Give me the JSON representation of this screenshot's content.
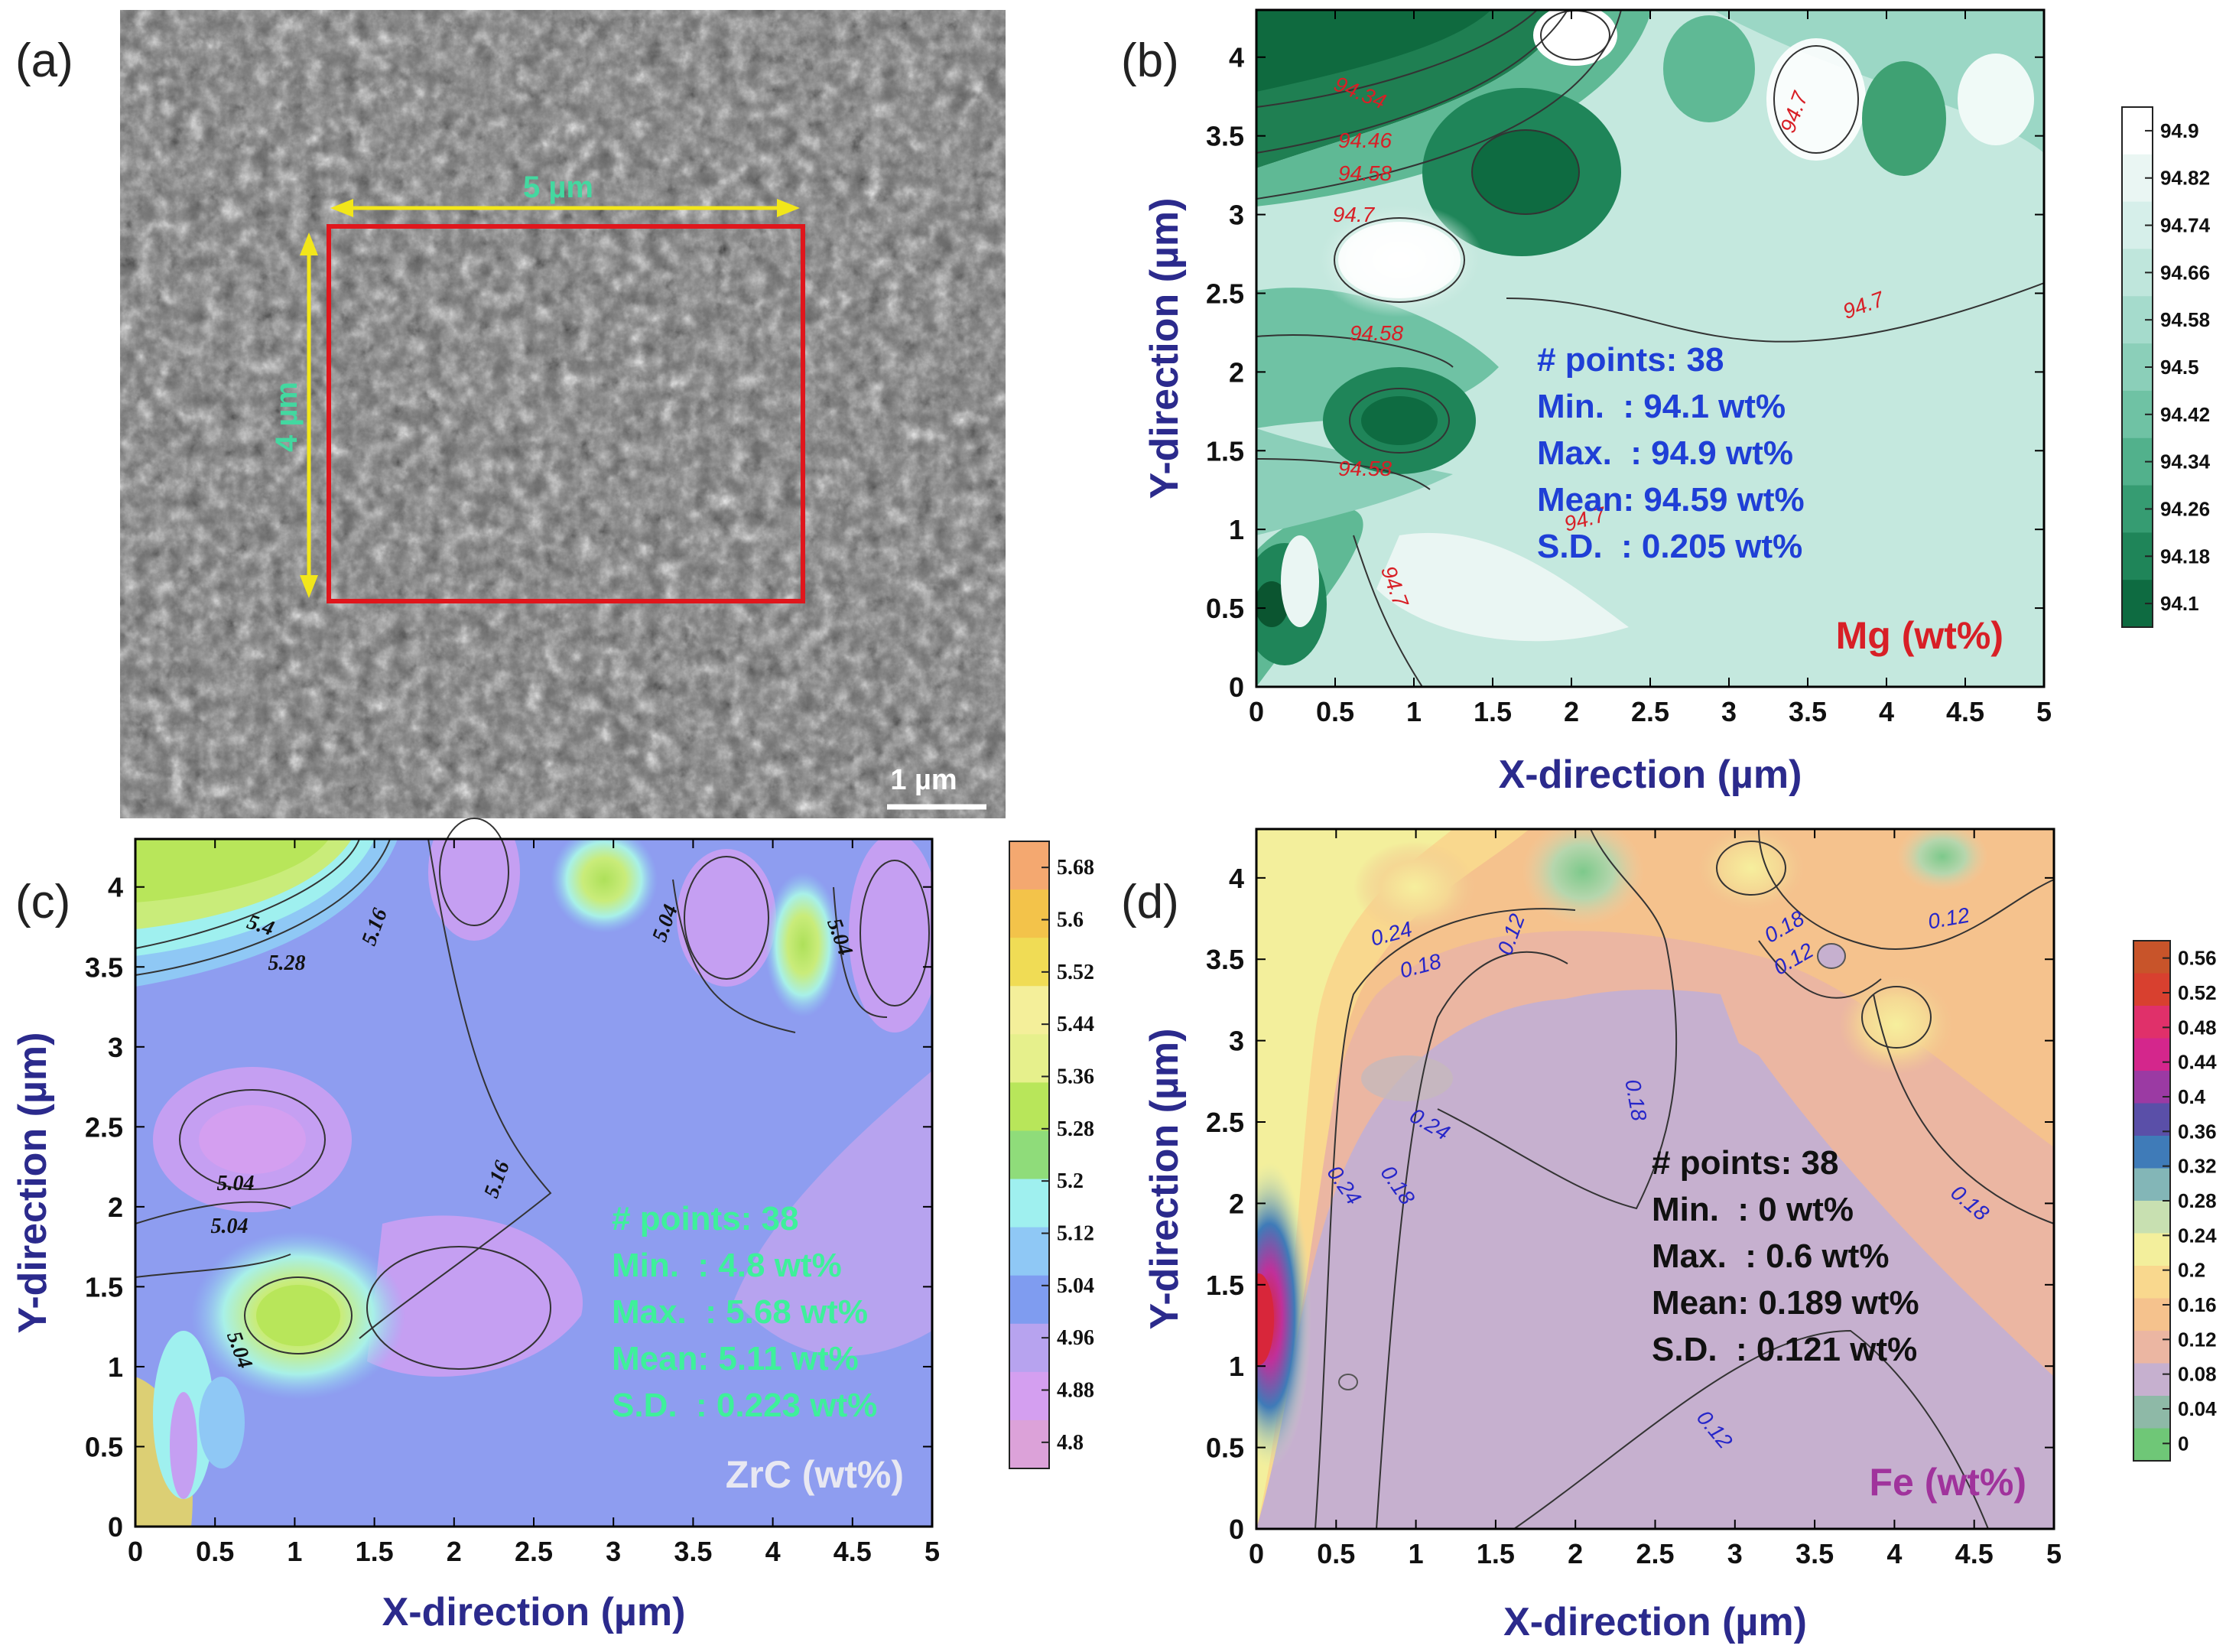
{
  "figure": {
    "panels": [
      {
        "label": "(a)",
        "type": "sem_image",
        "scale_bar": "1 µm",
        "box_width_label": "5 µm",
        "box_height_label": "4 µm"
      }
    ]
  },
  "chart_data": [
    {
      "panel": "(b)",
      "type": "contour",
      "xlabel": "X-direction (µm)",
      "ylabel": "Y-direction (µm)",
      "xlim": [
        0,
        5
      ],
      "ylim": [
        0,
        4.3
      ],
      "xticks": [
        "0",
        "0.5",
        "1",
        "1.5",
        "2",
        "2.5",
        "3",
        "3.5",
        "4",
        "4.5",
        "5"
      ],
      "yticks": [
        "0",
        "0.5",
        "1",
        "1.5",
        "2",
        "2.5",
        "3",
        "3.5",
        "4"
      ],
      "element_label": "Mg (wt%)",
      "stats": [
        "# points: 38",
        "Min.  : 94.1 wt%",
        "Max.  : 94.9 wt%",
        "Mean: 94.59 wt%",
        "S.D.  : 0.205 wt%"
      ],
      "colorbar_ticks": [
        "94.9",
        "94.82",
        "94.74",
        "94.66",
        "94.58",
        "94.5",
        "94.42",
        "94.34",
        "94.26",
        "94.18",
        "94.1"
      ],
      "colorbar_colors": [
        "#ffffff",
        "#eaf6f3",
        "#d6efea",
        "#bfe6dc",
        "#a5dbcc",
        "#8bcfb9",
        "#6fc2a4",
        "#52b18c",
        "#369c72",
        "#1f8559",
        "#0e6b41"
      ],
      "contour_labels": [
        "94.34",
        "94.46",
        "94.58",
        "94.7",
        "94.7",
        "94.7",
        "94.58",
        "94.58",
        "94.7",
        "94.7"
      ],
      "colors": {
        "stats": "#1f3fd6",
        "element": "#d81f26",
        "contour_label": "#d81f26"
      }
    },
    {
      "panel": "(c)",
      "type": "contour",
      "xlabel": "X-direction (µm)",
      "ylabel": "Y-direction (µm)",
      "xlim": [
        0,
        5
      ],
      "ylim": [
        0,
        4.3
      ],
      "xticks": [
        "0",
        "0.5",
        "1",
        "1.5",
        "2",
        "2.5",
        "3",
        "3.5",
        "4",
        "4.5",
        "5"
      ],
      "yticks": [
        "0",
        "0.5",
        "1",
        "1.5",
        "2",
        "2.5",
        "3",
        "3.5",
        "4"
      ],
      "element_label": "ZrC (wt%)",
      "stats": [
        "# points: 38",
        "Min.  : 4.8 wt%",
        "Max.  : 5.68 wt%",
        "Mean: 5.11 wt%",
        "S.D.  : 0.223 wt%"
      ],
      "colorbar_ticks": [
        "5.68",
        "5.6",
        "5.52",
        "5.44",
        "5.36",
        "5.28",
        "5.2",
        "5.12",
        "5.04",
        "4.96",
        "4.88",
        "4.8"
      ],
      "colorbar_colors": [
        "#f4a870",
        "#f3c34a",
        "#f0dc55",
        "#f4ef9a",
        "#e6f08c",
        "#b8e65a",
        "#8fdc7a",
        "#9ff0ef",
        "#8fc8f5",
        "#7f9cf0",
        "#b7a3ef",
        "#d49ff0",
        "#dca2d9"
      ],
      "contour_labels": [
        "5.4",
        "5.28",
        "5.16",
        "5.04",
        "5.04",
        "5.16",
        "5.04",
        "5.04",
        "5.04"
      ],
      "colors": {
        "stats": "#3ef09a",
        "element": "#e8e8f2",
        "contour_label": "#111111"
      }
    },
    {
      "panel": "(d)",
      "type": "contour",
      "xlabel": "X-direction (µm)",
      "ylabel": "Y-direction (µm)",
      "xlim": [
        0,
        5
      ],
      "ylim": [
        0,
        4.3
      ],
      "xticks": [
        "0",
        "0.5",
        "1",
        "1.5",
        "2",
        "2.5",
        "3",
        "3.5",
        "4",
        "4.5",
        "5"
      ],
      "yticks": [
        "0",
        "0.5",
        "1",
        "1.5",
        "2",
        "2.5",
        "3",
        "3.5",
        "4"
      ],
      "element_label": "Fe (wt%)",
      "stats": [
        "# points: 38",
        "Min.  : 0 wt%",
        "Max.  : 0.6 wt%",
        "Mean: 0.189 wt%",
        "S.D.  : 0.121 wt%"
      ],
      "colorbar_ticks": [
        "0.56",
        "0.52",
        "0.48",
        "0.44",
        "0.4",
        "0.36",
        "0.32",
        "0.28",
        "0.24",
        "0.2",
        "0.16",
        "0.12",
        "0.08",
        "0.04",
        "0"
      ],
      "colorbar_colors": [
        "#c8542a",
        "#d8402f",
        "#e0306a",
        "#d4268c",
        "#9b3aa3",
        "#5a4fa8",
        "#3f7bb8",
        "#83b6b7",
        "#c8e0b1",
        "#f3ef9c",
        "#f9d88e",
        "#f5c28d",
        "#ebb6a2",
        "#c6b0cf",
        "#8eb9a7",
        "#6fc777"
      ],
      "contour_labels": [
        "0.24",
        "0.18",
        "0.12",
        "0.24",
        "0.18",
        "0.18",
        "0.12",
        "0.12",
        "0.24",
        "0.18",
        "0.18",
        "0.12"
      ],
      "colors": {
        "stats": "#111111",
        "element": "#a0339c",
        "contour_label": "#2626c9"
      }
    }
  ]
}
